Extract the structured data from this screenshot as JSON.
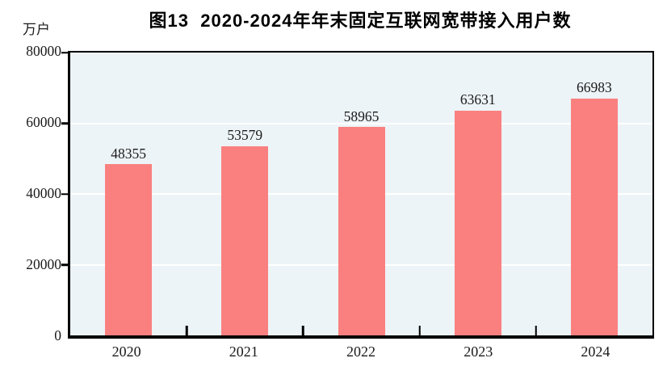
{
  "chart_data": {
    "type": "bar",
    "title": "图13  2020-2024年年末固定互联网宽带接入用户数",
    "unit_label": "万户",
    "categories": [
      "2020",
      "2021",
      "2022",
      "2023",
      "2024"
    ],
    "values": [
      48355,
      53579,
      58965,
      63631,
      66983
    ],
    "xlabel": "",
    "ylabel": "万户",
    "ylim": [
      0,
      80000
    ],
    "yticks": [
      0,
      20000,
      40000,
      60000,
      80000
    ],
    "grid": "horizontal",
    "legend_position": "none",
    "value_labels": "above-bars",
    "colors": {
      "bar": "#fa8080",
      "plot_background": "#edf4f7",
      "axis": "#000000",
      "gridline": "#ffffff",
      "text": "#1a1a1a"
    }
  }
}
